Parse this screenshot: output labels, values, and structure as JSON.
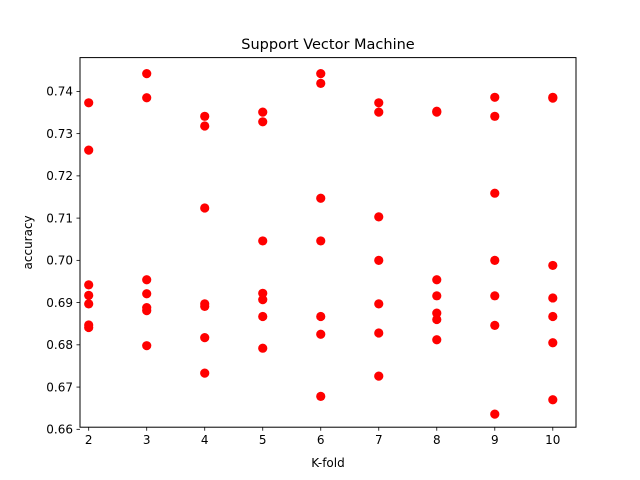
{
  "chart_data": {
    "type": "scatter",
    "title": "Support Vector Machine",
    "xlabel": "K-fold",
    "ylabel": "accuracy",
    "xlim": [
      1.85,
      10.4
    ],
    "ylim": [
      0.6605,
      0.748
    ],
    "xticks": [
      2,
      3,
      4,
      5,
      6,
      7,
      8,
      9,
      10
    ],
    "yticks": [
      0.66,
      0.67,
      0.68,
      0.69,
      0.7,
      0.71,
      0.72,
      0.73,
      0.74
    ],
    "ytick_labels": [
      "0.66",
      "0.67",
      "0.68",
      "0.69",
      "0.70",
      "0.71",
      "0.72",
      "0.73",
      "0.74"
    ],
    "grid": false,
    "marker_color": "#ff0000",
    "points": [
      {
        "x": 2,
        "y": 0.7373
      },
      {
        "x": 2,
        "y": 0.7261
      },
      {
        "x": 2,
        "y": 0.6942
      },
      {
        "x": 2,
        "y": 0.6917
      },
      {
        "x": 2,
        "y": 0.6897
      },
      {
        "x": 2,
        "y": 0.6847
      },
      {
        "x": 2,
        "y": 0.6841
      },
      {
        "x": 3,
        "y": 0.7442
      },
      {
        "x": 3,
        "y": 0.7385
      },
      {
        "x": 3,
        "y": 0.6954
      },
      {
        "x": 3,
        "y": 0.6921
      },
      {
        "x": 3,
        "y": 0.6888
      },
      {
        "x": 3,
        "y": 0.6881
      },
      {
        "x": 3,
        "y": 0.6798
      },
      {
        "x": 4,
        "y": 0.7341
      },
      {
        "x": 4,
        "y": 0.7318
      },
      {
        "x": 4,
        "y": 0.7124
      },
      {
        "x": 4,
        "y": 0.6897
      },
      {
        "x": 4,
        "y": 0.6891
      },
      {
        "x": 4,
        "y": 0.6817
      },
      {
        "x": 4,
        "y": 0.6733
      },
      {
        "x": 5,
        "y": 0.7351
      },
      {
        "x": 5,
        "y": 0.7328
      },
      {
        "x": 5,
        "y": 0.7046
      },
      {
        "x": 5,
        "y": 0.6922
      },
      {
        "x": 5,
        "y": 0.6907
      },
      {
        "x": 5,
        "y": 0.6867
      },
      {
        "x": 5,
        "y": 0.6792
      },
      {
        "x": 6,
        "y": 0.7442
      },
      {
        "x": 6,
        "y": 0.7419
      },
      {
        "x": 6,
        "y": 0.7147
      },
      {
        "x": 6,
        "y": 0.7046
      },
      {
        "x": 6,
        "y": 0.6867
      },
      {
        "x": 6,
        "y": 0.6825
      },
      {
        "x": 6,
        "y": 0.6678
      },
      {
        "x": 7,
        "y": 0.7373
      },
      {
        "x": 7,
        "y": 0.7351
      },
      {
        "x": 7,
        "y": 0.7103
      },
      {
        "x": 7,
        "y": 0.7
      },
      {
        "x": 7,
        "y": 0.6897
      },
      {
        "x": 7,
        "y": 0.6828
      },
      {
        "x": 7,
        "y": 0.6726
      },
      {
        "x": 8,
        "y": 0.7353
      },
      {
        "x": 8,
        "y": 0.7351
      },
      {
        "x": 8,
        "y": 0.6954
      },
      {
        "x": 8,
        "y": 0.6916
      },
      {
        "x": 8,
        "y": 0.6875
      },
      {
        "x": 8,
        "y": 0.686
      },
      {
        "x": 8,
        "y": 0.6812
      },
      {
        "x": 9,
        "y": 0.7386
      },
      {
        "x": 9,
        "y": 0.7341
      },
      {
        "x": 9,
        "y": 0.7159
      },
      {
        "x": 9,
        "y": 0.7
      },
      {
        "x": 9,
        "y": 0.6916
      },
      {
        "x": 9,
        "y": 0.6846
      },
      {
        "x": 9,
        "y": 0.6636
      },
      {
        "x": 10,
        "y": 0.7386
      },
      {
        "x": 10,
        "y": 0.7384
      },
      {
        "x": 10,
        "y": 0.6988
      },
      {
        "x": 10,
        "y": 0.6911
      },
      {
        "x": 10,
        "y": 0.6867
      },
      {
        "x": 10,
        "y": 0.6805
      },
      {
        "x": 10,
        "y": 0.667
      }
    ]
  }
}
